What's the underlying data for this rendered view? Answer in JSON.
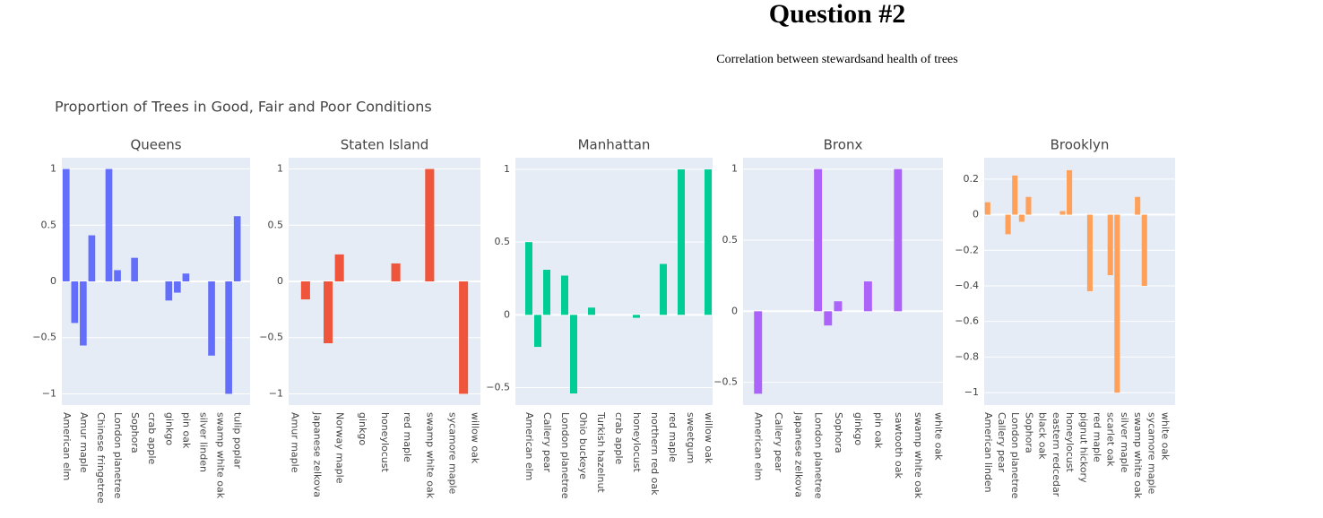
{
  "header": {
    "title": "Question #2",
    "subtitle": "Correlation between stewardsand health of trees"
  },
  "figure_title": "Proportion of Trees in Good, Fair and Poor Conditions",
  "chart_data": [
    {
      "type": "bar",
      "title": "Queens",
      "color": "#636efa",
      "grid": true,
      "categories": [
        "American elm",
        null,
        "Amur maple",
        null,
        "Chinese fringetree",
        null,
        "London planetree",
        null,
        "Sophora",
        null,
        "crab apple",
        null,
        "ginkgo",
        null,
        "pin oak",
        null,
        "silver linden",
        null,
        "swamp white oak",
        null,
        "tulip poplar",
        null
      ],
      "values": [
        1,
        -0.37,
        -0.57,
        0.41,
        0,
        1,
        0.1,
        0,
        0.21,
        0,
        0,
        0,
        -0.17,
        -0.1,
        0.07,
        0,
        0,
        -0.66,
        0,
        -1,
        0.58,
        0
      ],
      "ylim": [
        -1.1,
        1.1
      ],
      "yticks": [
        {
          "value": -1,
          "label": "−1"
        },
        {
          "value": -0.5,
          "label": "−0.5"
        },
        0,
        0.5,
        1
      ]
    },
    {
      "type": "bar",
      "title": "Staten Island",
      "color": "#ef553b",
      "grid": true,
      "categories": [
        "Amur maple",
        null,
        "Japanese zelkova",
        null,
        "Norway maple",
        null,
        "ginkgo",
        null,
        "honeylocust",
        null,
        "red maple",
        null,
        "swamp white oak",
        null,
        "sycamore maple",
        null,
        "willow oak"
      ],
      "values": [
        0,
        -0.16,
        0,
        -0.55,
        0.24,
        0,
        0,
        0,
        0,
        0.16,
        0,
        0,
        1,
        0,
        0,
        -1,
        0
      ],
      "ylim": [
        -1.1,
        1.1
      ],
      "yticks": [
        {
          "value": -1,
          "label": "−1"
        },
        {
          "value": -0.5,
          "label": "−0.5"
        },
        0,
        0.5,
        1
      ]
    },
    {
      "type": "bar",
      "title": "Manhattan",
      "color": "#00cc96",
      "grid": true,
      "categories": [
        null,
        "American elm",
        null,
        "Callery pear",
        null,
        "London planetree",
        null,
        "Ohio buckeye",
        null,
        "Turkish hazelnut",
        null,
        "crab apple",
        null,
        "honeylocust",
        null,
        "northern red oak",
        null,
        "red maple",
        null,
        "sweetgum",
        null,
        "willow oak"
      ],
      "values": [
        0,
        0.5,
        -0.22,
        0.31,
        0,
        0.27,
        -0.54,
        0,
        0.05,
        0,
        0,
        0,
        0,
        -0.02,
        0,
        0,
        0.35,
        0,
        1,
        0,
        0,
        1
      ],
      "ylim": [
        -0.62,
        1.08
      ],
      "yticks": [
        {
          "value": -0.5,
          "label": "−0.5"
        },
        0,
        0.5,
        1
      ]
    },
    {
      "type": "bar",
      "title": "Bronx",
      "color": "#ab63fa",
      "grid": true,
      "categories": [
        null,
        "American elm",
        null,
        "Callery pear",
        null,
        "Japanese zelkova",
        null,
        "London planetree",
        null,
        "Sophora",
        null,
        "ginkgo",
        null,
        "pin oak",
        null,
        "sawtooth oak",
        null,
        "swamp white oak",
        null,
        "white oak"
      ],
      "values": [
        0,
        -0.58,
        0,
        0,
        0,
        0,
        0,
        1,
        -0.1,
        0.07,
        0,
        0,
        0.21,
        0,
        0,
        1,
        0,
        0,
        0,
        0
      ],
      "ylim": [
        -0.66,
        1.08
      ],
      "yticks": [
        {
          "value": -0.5,
          "label": "−0.5"
        },
        0,
        0.5,
        1
      ]
    },
    {
      "type": "bar",
      "title": "Brooklyn",
      "color": "#ffa15a",
      "grid": true,
      "categories": [
        "American linden",
        null,
        "Callery pear",
        null,
        "London planetree",
        null,
        "Sophora",
        null,
        "black oak",
        null,
        "eastern redcedar",
        null,
        "honeylocust",
        null,
        "pignut hickory",
        null,
        "red maple",
        null,
        "scarlet oak",
        null,
        "silver maple",
        null,
        "swamp white oak",
        null,
        "sycamore maple",
        null,
        "white oak",
        null
      ],
      "values": [
        0.07,
        0,
        0,
        -0.11,
        0.22,
        -0.04,
        0.1,
        0,
        0,
        0,
        0,
        0.02,
        0.25,
        0,
        0,
        -0.43,
        0,
        0,
        -0.34,
        -1,
        0,
        0,
        0.1,
        -0.4,
        0,
        0,
        0,
        0
      ],
      "ylim": [
        -1.07,
        0.32
      ],
      "yticks": [
        {
          "value": -1,
          "label": "−1"
        },
        {
          "value": -0.8,
          "label": "−0.8"
        },
        {
          "value": -0.6,
          "label": "−0.6"
        },
        {
          "value": -0.4,
          "label": "−0.4"
        },
        {
          "value": -0.2,
          "label": "−0.2"
        },
        0,
        0.2
      ]
    }
  ]
}
